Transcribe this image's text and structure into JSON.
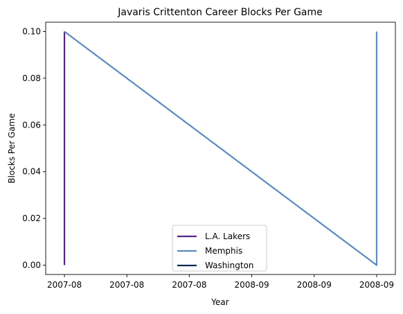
{
  "chart_data": {
    "type": "line",
    "title": "Javaris Crittenton Career Blocks Per Game",
    "xlabel": "Year",
    "ylabel": "Blocks Per Game",
    "x_tick_labels": [
      "2007-08",
      "2007-08",
      "2007-08",
      "2008-09",
      "2008-09",
      "2008-09"
    ],
    "y_ticks": [
      0.0,
      0.02,
      0.04,
      0.06,
      0.08,
      0.1
    ],
    "y_tick_labels": [
      "0.00",
      "0.02",
      "0.04",
      "0.06",
      "0.08",
      "0.10"
    ],
    "ylim": [
      -0.004,
      0.104
    ],
    "xlim": [
      -0.06,
      1.06
    ],
    "grid": false,
    "legend_position": "bottom-center",
    "series": [
      {
        "name": "L.A. Lakers",
        "color": "#552583",
        "points": [
          {
            "x": 0.0,
            "y": 0.0
          },
          {
            "x": 0.0,
            "y": 0.1
          }
        ]
      },
      {
        "name": "Memphis",
        "color": "#5D89BF",
        "points": [
          {
            "x": 0.0,
            "y": 0.1
          },
          {
            "x": 1.0,
            "y": 0.0
          },
          {
            "x": 1.0,
            "y": 0.1
          }
        ]
      },
      {
        "name": "Washington",
        "color": "#002B5C",
        "points": []
      }
    ]
  }
}
